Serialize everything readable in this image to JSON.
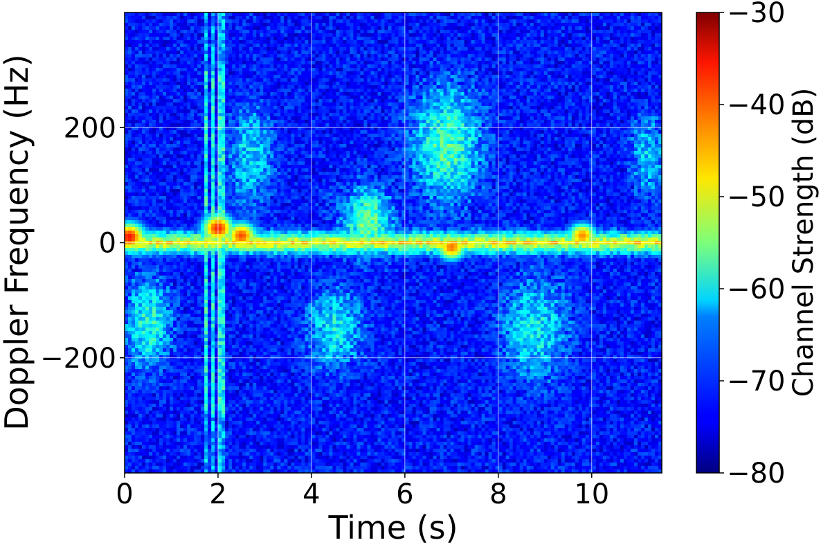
{
  "chart_data": {
    "type": "heatmap",
    "title": "",
    "xlabel": "Time (s)",
    "ylabel": "Doppler Frequency (Hz)",
    "xlim": [
      0,
      11.5
    ],
    "ylim": [
      -400,
      400
    ],
    "xticks": [
      0,
      2,
      4,
      6,
      8,
      10
    ],
    "xtick_labels": [
      "0",
      "2",
      "4",
      "6",
      "8",
      "10"
    ],
    "yticks": [
      -200,
      0,
      200
    ],
    "ytick_labels": [
      "−200",
      "0",
      "200"
    ],
    "grid": true,
    "colormap": "jet",
    "colorbar": {
      "label": "Channel Strength (dB)",
      "range": [
        -80,
        -30
      ],
      "ticks": [
        -80,
        -70,
        -60,
        -50,
        -40,
        -30
      ],
      "tick_labels": [
        "−80",
        "−70",
        "−60",
        "−50",
        "−40",
        "−30"
      ]
    },
    "features": {
      "zero_doppler_ridge_db": -48,
      "peaks": [
        {
          "t": 0.1,
          "f": 10,
          "db": -37
        },
        {
          "t": 2.0,
          "f": 25,
          "db": -38
        },
        {
          "t": 2.5,
          "f": 12,
          "db": -40
        },
        {
          "t": 7.0,
          "f": -8,
          "db": -42
        },
        {
          "t": 9.8,
          "f": 12,
          "db": -43
        }
      ],
      "strong_column_times": [
        1.75,
        1.9,
        2.1
      ]
    }
  }
}
